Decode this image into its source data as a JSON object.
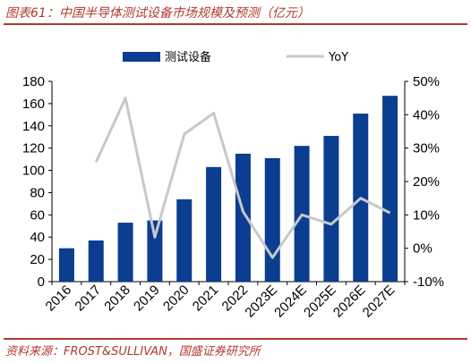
{
  "header": {
    "title": "图表61：中国半导体测试设备市场规模及预测（亿元）"
  },
  "footer": {
    "source": "资料来源：FROST&SULLIVAN，国盛证券研究所"
  },
  "colors": {
    "bar": "#0b3d91",
    "line": "#c8c8c8",
    "accent": "#b03a2e"
  },
  "chart_data": {
    "type": "bar",
    "title": "图表61：中国半导体测试设备市场规模及预测（亿元）",
    "categories": [
      "2016",
      "2017",
      "2018",
      "2019",
      "2020",
      "2021",
      "2022",
      "2023E",
      "2024E",
      "2025E",
      "2026E",
      "2027E"
    ],
    "series": [
      {
        "name": "测试设备",
        "type": "bar",
        "axis": "left",
        "values": [
          30,
          37,
          53,
          55,
          74,
          103,
          115,
          111,
          122,
          131,
          151,
          167
        ]
      },
      {
        "name": "YoY",
        "type": "line",
        "axis": "right",
        "values": [
          null,
          25.8,
          45.0,
          3.3,
          34.2,
          40.5,
          11.0,
          -2.8,
          10.0,
          7.2,
          15.0,
          10.6
        ]
      }
    ],
    "left_axis": {
      "min": 0,
      "max": 180,
      "ticks": [
        "0",
        "20",
        "40",
        "60",
        "80",
        "100",
        "120",
        "140",
        "160",
        "180"
      ]
    },
    "right_axis": {
      "min": -10,
      "max": 50,
      "ticks": [
        "-10%",
        "0%",
        "10%",
        "20%",
        "30%",
        "40%",
        "50%"
      ]
    },
    "legend": {
      "placement": "top",
      "items": [
        "测试设备",
        "YoY"
      ]
    },
    "grid": false
  }
}
